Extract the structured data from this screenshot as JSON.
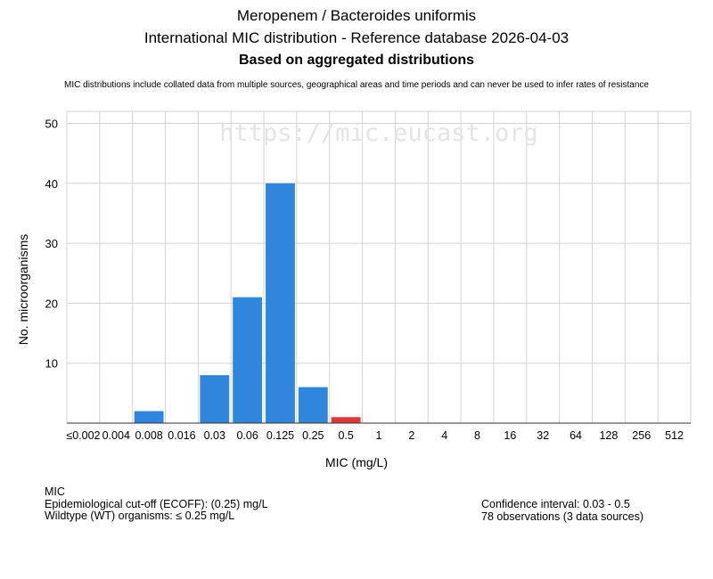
{
  "header": {
    "title": "Meropenem / Bacteroides uniformis",
    "subtitle": "International MIC distribution - Reference database 2026-04-03",
    "basis": "Based on aggregated distributions",
    "disclaimer": "MIC distributions include collated data from multiple sources, geographical areas and time periods and can never be used to infer rates of resistance"
  },
  "watermark": "https://mic.eucast.org",
  "colors": {
    "wildtype": "#2f86dc",
    "non_wildtype": "#e0373a",
    "grid": "#d3d3d3"
  },
  "chart_data": {
    "type": "bar",
    "categories": [
      "≤0.002",
      "0.004",
      "0.008",
      "0.016",
      "0.03",
      "0.06",
      "0.125",
      "0.25",
      "0.5",
      "1",
      "2",
      "4",
      "8",
      "16",
      "32",
      "64",
      "128",
      "256",
      "512"
    ],
    "values": [
      0,
      0,
      2,
      0,
      8,
      21,
      40,
      6,
      1,
      0,
      0,
      0,
      0,
      0,
      0,
      0,
      0,
      0,
      0
    ],
    "bar_colors": [
      "wildtype",
      "wildtype",
      "wildtype",
      "wildtype",
      "wildtype",
      "wildtype",
      "wildtype",
      "wildtype",
      "non_wildtype",
      "wildtype",
      "wildtype",
      "wildtype",
      "wildtype",
      "wildtype",
      "wildtype",
      "wildtype",
      "wildtype",
      "wildtype",
      "wildtype"
    ],
    "xlabel": "MIC (mg/L)",
    "ylabel": "No. microorganisms",
    "ylim": [
      0,
      52
    ],
    "yticks": [
      10,
      20,
      30,
      40,
      50
    ],
    "grid": true
  },
  "footer": {
    "left": [
      "MIC",
      "Epidemiological cut-off (ECOFF): (0.25) mg/L",
      "Wildtype (WT) organisms: ≤ 0.25 mg/L"
    ],
    "right": [
      "Confidence interval: 0.03 - 0.5",
      "78 observations (3 data sources)"
    ]
  }
}
